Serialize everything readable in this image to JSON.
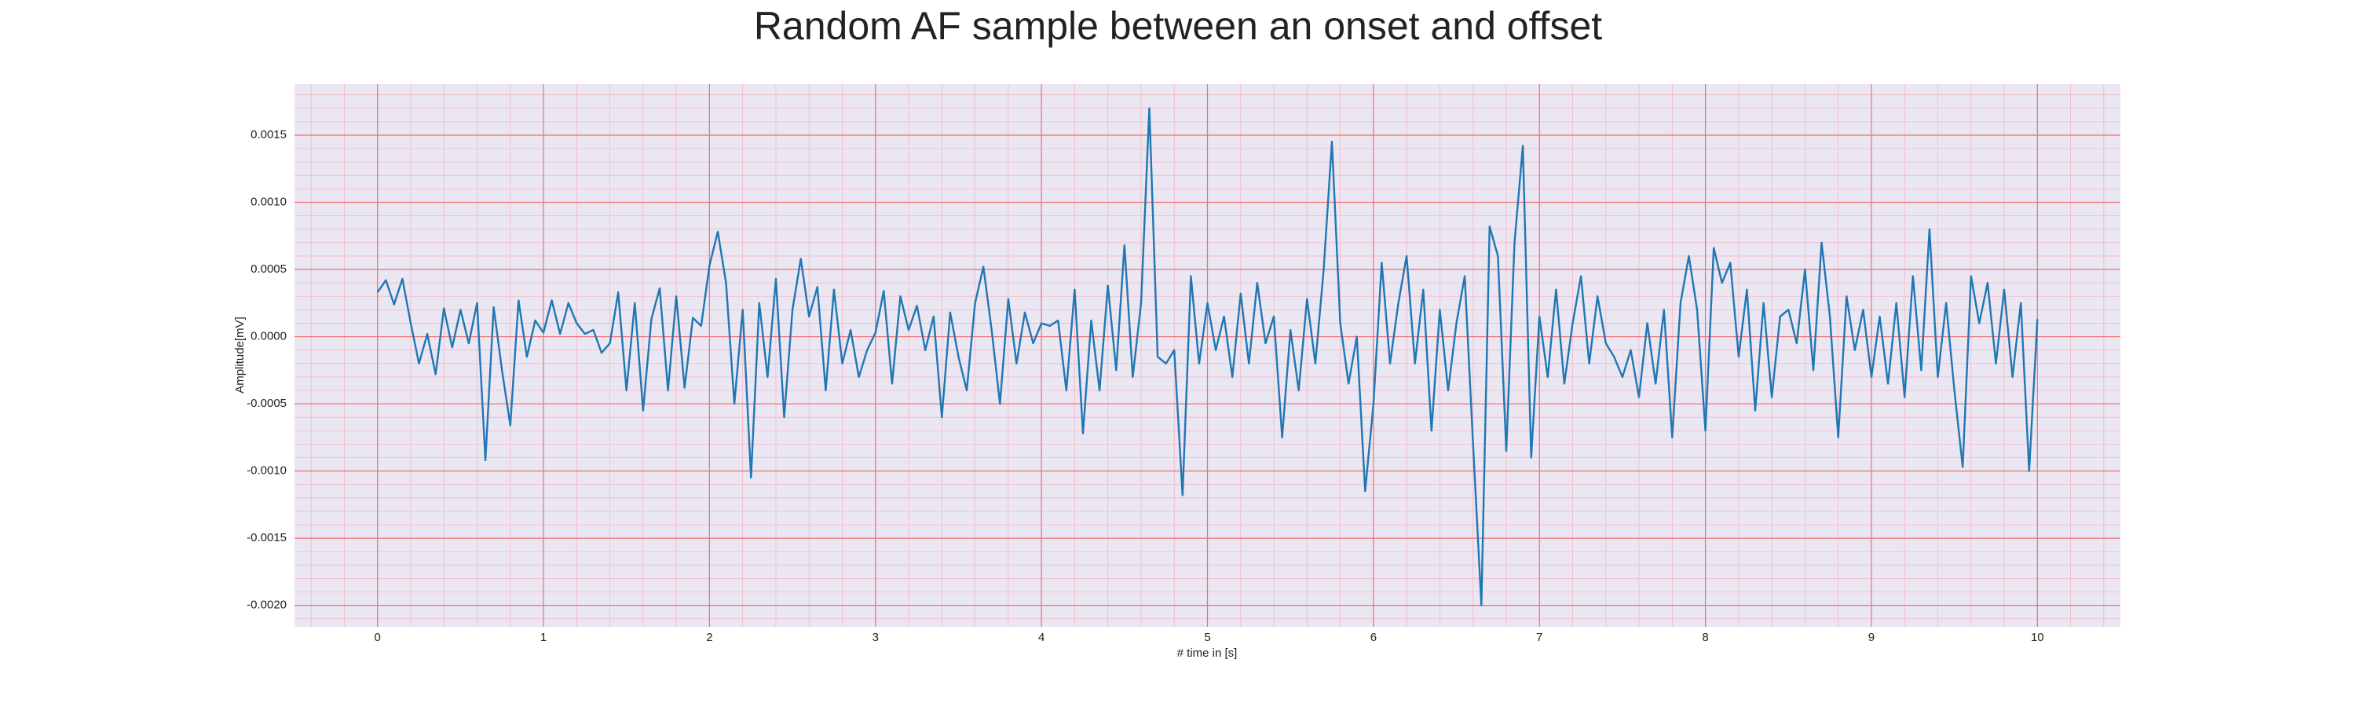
{
  "chart_data": {
    "type": "line",
    "title": "Random AF sample between an onset and offset",
    "xlabel": "# time in [s]",
    "ylabel": "Amplitude[mV]",
    "x": [
      0,
      0.05,
      0.1,
      0.15,
      0.2,
      0.25,
      0.3,
      0.35,
      0.4,
      0.45,
      0.5,
      0.55,
      0.6,
      0.65,
      0.7,
      0.75,
      0.8,
      0.85,
      0.9,
      0.95,
      1,
      1.05,
      1.1,
      1.15,
      1.2,
      1.25,
      1.3,
      1.35,
      1.4,
      1.45,
      1.5,
      1.55,
      1.6,
      1.65,
      1.7,
      1.75,
      1.8,
      1.85,
      1.9,
      1.95,
      2,
      2.05,
      2.1,
      2.15,
      2.2,
      2.25,
      2.3,
      2.35,
      2.4,
      2.45,
      2.5,
      2.55,
      2.6,
      2.65,
      2.7,
      2.75,
      2.8,
      2.85,
      2.9,
      2.95,
      3,
      3.05,
      3.1,
      3.15,
      3.2,
      3.25,
      3.3,
      3.35,
      3.4,
      3.45,
      3.5,
      3.55,
      3.6,
      3.65,
      3.7,
      3.75,
      3.8,
      3.85,
      3.9,
      3.95,
      4,
      4.05,
      4.1,
      4.15,
      4.2,
      4.25,
      4.3,
      4.35,
      4.4,
      4.45,
      4.5,
      4.55,
      4.6,
      4.65,
      4.7,
      4.75,
      4.8,
      4.85,
      4.9,
      4.95,
      5,
      5.05,
      5.1,
      5.15,
      5.2,
      5.25,
      5.3,
      5.35,
      5.4,
      5.45,
      5.5,
      5.55,
      5.6,
      5.65,
      5.7,
      5.75,
      5.8,
      5.85,
      5.9,
      5.95,
      6,
      6.05,
      6.1,
      6.15,
      6.2,
      6.25,
      6.3,
      6.35,
      6.4,
      6.45,
      6.5,
      6.55,
      6.6,
      6.65,
      6.7,
      6.75,
      6.8,
      6.85,
      6.9,
      6.95,
      7,
      7.05,
      7.1,
      7.15,
      7.2,
      7.25,
      7.3,
      7.35,
      7.4,
      7.45,
      7.5,
      7.55,
      7.6,
      7.65,
      7.7,
      7.75,
      7.8,
      7.85,
      7.9,
      7.95,
      8,
      8.05,
      8.1,
      8.15,
      8.2,
      8.25,
      8.3,
      8.35,
      8.4,
      8.45,
      8.5,
      8.55,
      8.6,
      8.65,
      8.7,
      8.75,
      8.8,
      8.85,
      8.9,
      8.95,
      9,
      9.05,
      9.1,
      9.15,
      9.2,
      9.25,
      9.3,
      9.35,
      9.4,
      9.45,
      9.5,
      9.55,
      9.6,
      9.65,
      9.7,
      9.75,
      9.8,
      9.85,
      9.9,
      9.95,
      10
    ],
    "series": [
      {
        "name": "AF sample",
        "color": "#1f77b4",
        "values": [
          0.00033,
          0.00042,
          0.00024,
          0.00043,
          0.0001,
          -0.0002,
          2e-05,
          -0.00028,
          0.00021,
          -8e-05,
          0.0002,
          -5e-05,
          0.00025,
          -0.00092,
          0.00022,
          -0.00025,
          -0.00066,
          0.00027,
          -0.00015,
          0.00012,
          3e-05,
          0.00027,
          2e-05,
          0.00025,
          0.0001,
          2e-05,
          5e-05,
          -0.00012,
          -5e-05,
          0.00033,
          -0.0004,
          0.00025,
          -0.00055,
          0.00013,
          0.00036,
          -0.0004,
          0.0003,
          -0.00038,
          0.00014,
          8e-05,
          0.00053,
          0.00078,
          0.0004,
          -0.0005,
          0.0002,
          -0.00105,
          0.00025,
          -0.0003,
          0.00043,
          -0.0006,
          0.0002,
          0.00058,
          0.00015,
          0.00037,
          -0.0004,
          0.00035,
          -0.0002,
          5e-05,
          -0.0003,
          -0.0001,
          3e-05,
          0.00034,
          -0.00035,
          0.0003,
          5e-05,
          0.00023,
          -0.0001,
          0.00015,
          -0.0006,
          0.00018,
          -0.00015,
          -0.0004,
          0.00025,
          0.00052,
          5e-05,
          -0.0005,
          0.00028,
          -0.0002,
          0.00018,
          -5e-05,
          0.0001,
          8e-05,
          0.00012,
          -0.0004,
          0.00035,
          -0.00072,
          0.00012,
          -0.0004,
          0.00038,
          -0.00025,
          0.00068,
          -0.0003,
          0.00025,
          0.0017,
          -0.00015,
          -0.0002,
          -0.0001,
          -0.00118,
          0.00045,
          -0.0002,
          0.00025,
          -0.0001,
          0.00015,
          -0.0003,
          0.00032,
          -0.0002,
          0.0004,
          -5e-05,
          0.00015,
          -0.00075,
          5e-05,
          -0.0004,
          0.00028,
          -0.0002,
          0.0005,
          0.00145,
          0.0001,
          -0.00035,
          0,
          -0.00115,
          -0.0005,
          0.00055,
          -0.0002,
          0.00025,
          0.0006,
          -0.0002,
          0.00035,
          -0.0007,
          0.0002,
          -0.0004,
          0.0001,
          0.00045,
          -0.0008,
          -0.002,
          0.00082,
          0.0006,
          -0.00085,
          0.0007,
          0.00142,
          -0.0009,
          0.00015,
          -0.0003,
          0.00035,
          -0.00035,
          0.0001,
          0.00045,
          -0.0002,
          0.0003,
          -5e-05,
          -0.00015,
          -0.0003,
          -0.0001,
          -0.00045,
          0.0001,
          -0.00035,
          0.0002,
          -0.00075,
          0.00025,
          0.0006,
          0.0002,
          -0.0007,
          0.00066,
          0.0004,
          0.00055,
          -0.00015,
          0.00035,
          -0.00055,
          0.00025,
          -0.00045,
          0.00015,
          0.0002,
          -5e-05,
          0.0005,
          -0.00025,
          0.0007,
          0.00015,
          -0.00075,
          0.0003,
          -0.0001,
          0.0002,
          -0.0003,
          0.00015,
          -0.00035,
          0.00025,
          -0.00045,
          0.00045,
          -0.00025,
          0.0008,
          -0.0003,
          0.00025,
          -0.0004,
          -0.00097,
          0.00045,
          0.0001,
          0.0004,
          -0.0002,
          0.00035,
          -0.0003,
          0.00025,
          -0.001,
          0.00013
        ]
      }
    ],
    "xlim": [
      -0.5,
      10.5
    ],
    "xticks": [
      0,
      1,
      2,
      3,
      4,
      5,
      6,
      7,
      8,
      9,
      10
    ],
    "ylim": [
      -0.00216,
      0.00188
    ],
    "yticks": [
      {
        "value": -0.002,
        "label": "-0.0020"
      },
      -0.0015,
      {
        "value": -0.001,
        "label": "-0.0010"
      },
      -0.0005,
      {
        "value": 0,
        "label": "0.0000"
      },
      0.0005,
      {
        "value": 0.001,
        "label": "0.0010"
      },
      0.0015
    ],
    "grid": true,
    "minor_grid": true
  }
}
